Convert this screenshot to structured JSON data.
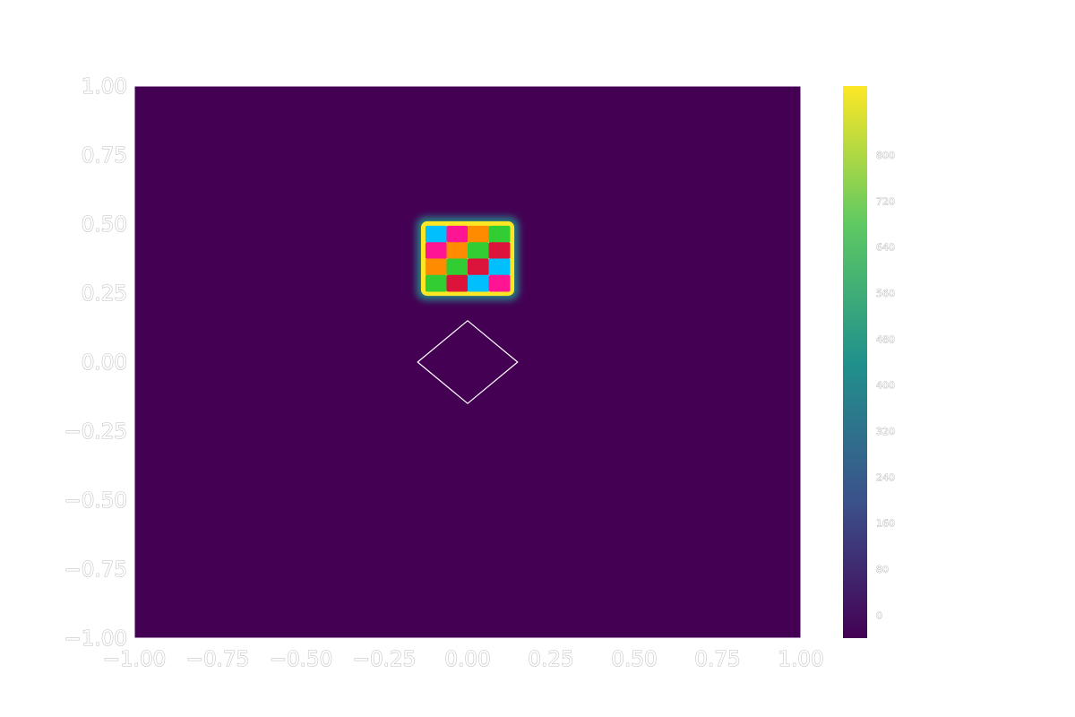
{
  "chart_data": {
    "type": "heatmap",
    "title": "",
    "xlabel": "",
    "ylabel": "",
    "xlim": [
      -1.0,
      1.0
    ],
    "ylim": [
      -1.0,
      1.0
    ],
    "x_ticks": [
      "−1.00",
      "−0.75",
      "−0.50",
      "−0.25",
      "0.00",
      "0.25",
      "0.50",
      "0.75",
      "1.00"
    ],
    "y_ticks": [
      "1.00",
      "0.75",
      "0.50",
      "0.25",
      "0.00",
      "−0.25",
      "−0.50",
      "−0.75",
      "−1.00"
    ],
    "x_tick_values": [
      -1.0,
      -0.75,
      -0.5,
      -0.25,
      0.0,
      0.25,
      0.5,
      0.75,
      1.0
    ],
    "y_tick_values": [
      1.0,
      0.75,
      0.5,
      0.25,
      0.0,
      -0.25,
      -0.5,
      -0.75,
      -1.0
    ],
    "grid": false,
    "background_value": 0,
    "colormap": "viridis",
    "colormap_colors": [
      "#440154",
      "#3b528b",
      "#21918c",
      "#5ec962",
      "#fde725"
    ],
    "colorbar": {
      "range": [
        -40,
        920
      ],
      "tick_values": [
        0,
        80,
        160,
        240,
        320,
        400,
        480,
        560,
        640,
        720,
        800
      ],
      "tick_labels": [
        "0",
        "80",
        "160",
        "240",
        "320",
        "400",
        "480",
        "560",
        "640",
        "720",
        "800"
      ]
    },
    "bright_rectangle": {
      "x": [
        -0.14,
        0.14
      ],
      "y": [
        0.24,
        0.51
      ],
      "edge_value": 920,
      "rows": 4,
      "cols": 4,
      "cell_colors": [
        [
          "#00bfff",
          "#ff1493",
          "#ff8c00",
          "#32cd32"
        ],
        [
          "#ff1493",
          "#ff8c00",
          "#32cd32",
          "#dc143c"
        ],
        [
          "#ff8c00",
          "#32cd32",
          "#dc143c",
          "#00bfff"
        ],
        [
          "#32cd32",
          "#dc143c",
          "#00bfff",
          "#ff1493"
        ]
      ]
    },
    "diamond_outline": {
      "center": [
        0.0,
        0.0
      ],
      "half_width": 0.15,
      "half_height": 0.15,
      "color": "#ffffff"
    }
  }
}
